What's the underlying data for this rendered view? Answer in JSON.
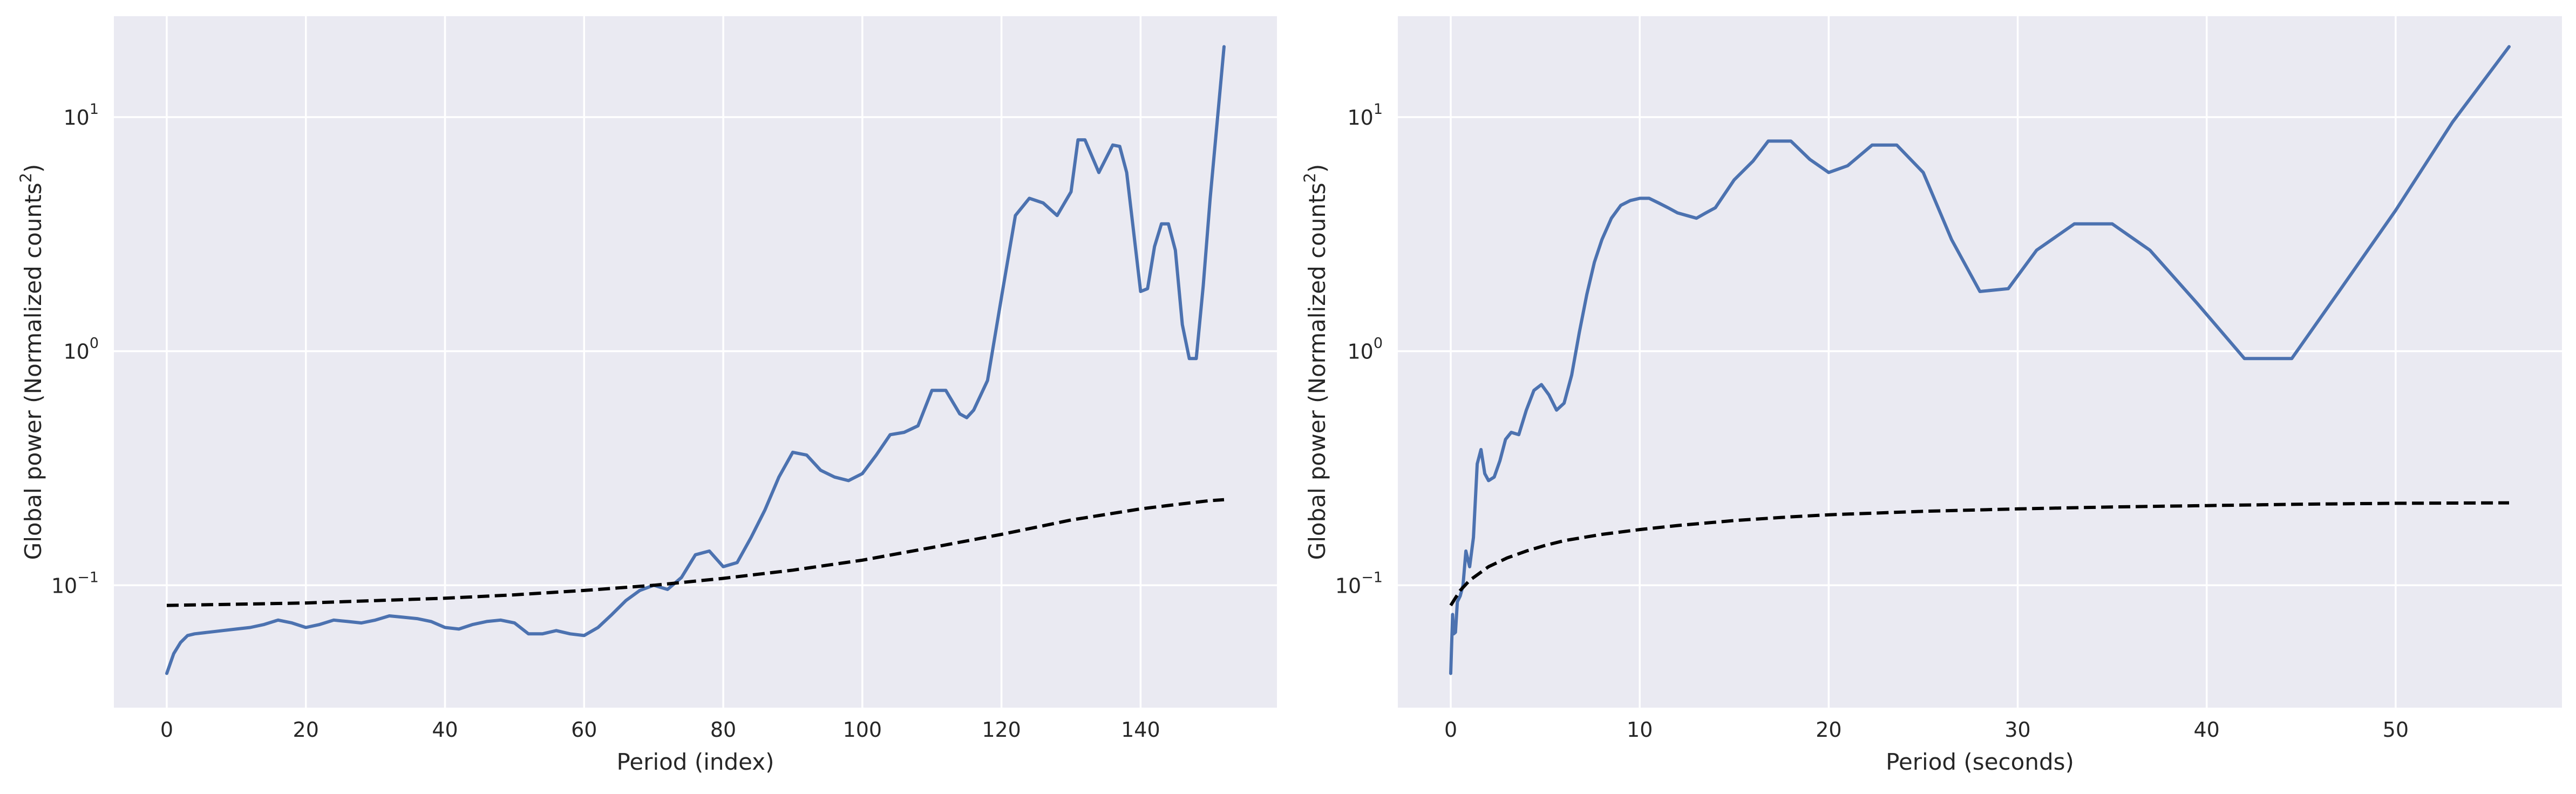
{
  "chart_data": [
    {
      "type": "line",
      "xlabel": "Period (index)",
      "ylabel": "Global power (Normalized counts",
      "ylabel_sup": "2",
      "ylabel_close": ")",
      "yscale": "log",
      "xlim": [
        -7.6,
        159.6
      ],
      "ylim": [
        0.03,
        27
      ],
      "xticks": [
        0,
        20,
        40,
        60,
        80,
        100,
        120,
        140
      ],
      "xtick_labels": [
        "0",
        "20",
        "40",
        "60",
        "80",
        "100",
        "120",
        "140"
      ],
      "yticks": [
        0.1,
        1,
        10
      ],
      "ytick_labels": [
        {
          "base": "10",
          "exp": "−1"
        },
        {
          "base": "10",
          "exp": "0"
        },
        {
          "base": "10",
          "exp": "1"
        }
      ],
      "grid": true,
      "background": "#EAEAF2",
      "series": [
        {
          "color": "#4C72B0",
          "style": "solid",
          "x": [
            0,
            1,
            2,
            3,
            4,
            6,
            8,
            10,
            12,
            14,
            16,
            18,
            20,
            22,
            24,
            26,
            28,
            30,
            32,
            34,
            36,
            38,
            40,
            42,
            44,
            46,
            48,
            50,
            52,
            54,
            56,
            58,
            60,
            62,
            64,
            66,
            68,
            70,
            72,
            74,
            76,
            78,
            80,
            82,
            84,
            86,
            88,
            90,
            92,
            94,
            96,
            98,
            100,
            102,
            104,
            106,
            108,
            110,
            112,
            114,
            115,
            116,
            118,
            120,
            122,
            124,
            126,
            128,
            130,
            131,
            132,
            134,
            136,
            137,
            138,
            140,
            141,
            142,
            143,
            144,
            145,
            146,
            147,
            148,
            149,
            150,
            151,
            152
          ],
          "y": [
            0.042,
            0.051,
            0.057,
            0.061,
            0.062,
            0.063,
            0.064,
            0.065,
            0.066,
            0.068,
            0.071,
            0.069,
            0.066,
            0.068,
            0.071,
            0.07,
            0.069,
            0.071,
            0.074,
            0.073,
            0.072,
            0.07,
            0.066,
            0.065,
            0.068,
            0.07,
            0.071,
            0.069,
            0.062,
            0.062,
            0.064,
            0.062,
            0.061,
            0.066,
            0.075,
            0.086,
            0.095,
            0.1,
            0.096,
            0.108,
            0.135,
            0.14,
            0.12,
            0.125,
            0.16,
            0.21,
            0.29,
            0.37,
            0.36,
            0.31,
            0.29,
            0.28,
            0.3,
            0.36,
            0.44,
            0.45,
            0.48,
            0.68,
            0.68,
            0.54,
            0.52,
            0.56,
            0.75,
            1.7,
            3.8,
            4.5,
            4.3,
            3.8,
            4.8,
            8.0,
            8.0,
            5.8,
            7.6,
            7.5,
            5.8,
            1.8,
            1.85,
            2.8,
            3.5,
            3.5,
            2.7,
            1.3,
            0.93,
            0.93,
            1.9,
            4.5,
            9.5,
            20.0
          ]
        },
        {
          "color": "#000000",
          "style": "dashed",
          "x": [
            0,
            10,
            20,
            30,
            40,
            50,
            60,
            70,
            80,
            90,
            100,
            110,
            120,
            130,
            140,
            145,
            150,
            152
          ],
          "y": [
            0.082,
            0.083,
            0.084,
            0.086,
            0.088,
            0.091,
            0.095,
            0.1,
            0.107,
            0.116,
            0.128,
            0.145,
            0.165,
            0.19,
            0.212,
            0.221,
            0.23,
            0.232
          ]
        }
      ]
    },
    {
      "type": "line",
      "xlabel": "Period (seconds)",
      "ylabel": "Global power (Normalized counts",
      "ylabel_sup": "2",
      "ylabel_close": ")",
      "yscale": "log",
      "xlim": [
        -2.8,
        58.8
      ],
      "ylim": [
        0.03,
        27
      ],
      "xticks": [
        0,
        10,
        20,
        30,
        40,
        50
      ],
      "xtick_labels": [
        "0",
        "10",
        "20",
        "30",
        "40",
        "50"
      ],
      "yticks": [
        0.1,
        1,
        10
      ],
      "ytick_labels": [
        {
          "base": "10",
          "exp": "−1"
        },
        {
          "base": "10",
          "exp": "0"
        },
        {
          "base": "10",
          "exp": "1"
        }
      ],
      "grid": true,
      "background": "#EAEAF2",
      "series": [
        {
          "color": "#4C72B0",
          "style": "solid",
          "x": [
            0.0,
            0.1,
            0.15,
            0.25,
            0.35,
            0.5,
            0.65,
            0.8,
            1.0,
            1.2,
            1.4,
            1.6,
            1.8,
            2.0,
            2.3,
            2.6,
            2.9,
            3.2,
            3.6,
            4.0,
            4.4,
            4.8,
            5.2,
            5.6,
            6.0,
            6.4,
            6.8,
            7.2,
            7.6,
            8.0,
            8.5,
            9.0,
            9.5,
            10.0,
            10.5,
            11.0,
            11.5,
            12.0,
            12.5,
            13.0,
            13.5,
            14.0,
            15.0,
            16.0,
            16.8,
            18.0,
            19.0,
            20.0,
            21.0,
            22.3,
            23.6,
            25.0,
            26.5,
            28.0,
            29.5,
            31.0,
            33.0,
            35.0,
            37.0,
            39.5,
            42.0,
            44.5,
            47.0,
            50.0,
            53.0,
            56.0
          ],
          "y": [
            0.042,
            0.075,
            0.062,
            0.063,
            0.085,
            0.09,
            0.1,
            0.14,
            0.12,
            0.16,
            0.33,
            0.38,
            0.3,
            0.28,
            0.29,
            0.34,
            0.42,
            0.45,
            0.44,
            0.56,
            0.68,
            0.72,
            0.65,
            0.56,
            0.6,
            0.79,
            1.2,
            1.75,
            2.4,
            3.0,
            3.7,
            4.2,
            4.4,
            4.5,
            4.5,
            4.3,
            4.1,
            3.9,
            3.8,
            3.7,
            3.9,
            4.1,
            5.4,
            6.5,
            7.9,
            7.9,
            6.6,
            5.8,
            6.2,
            7.6,
            7.6,
            5.8,
            3.0,
            1.8,
            1.85,
            2.7,
            3.5,
            3.5,
            2.7,
            1.6,
            0.93,
            0.93,
            1.8,
            4.0,
            9.5,
            20.0
          ]
        },
        {
          "color": "#000000",
          "style": "dashed",
          "x": [
            0,
            0.5,
            1,
            2,
            3,
            4,
            5,
            6,
            8,
            10,
            12,
            15,
            18,
            20,
            25,
            30,
            35,
            40,
            45,
            50,
            56
          ],
          "y": [
            0.082,
            0.095,
            0.105,
            0.12,
            0.131,
            0.14,
            0.148,
            0.155,
            0.165,
            0.173,
            0.18,
            0.189,
            0.196,
            0.2,
            0.207,
            0.212,
            0.216,
            0.219,
            0.222,
            0.224,
            0.225
          ]
        }
      ]
    }
  ]
}
